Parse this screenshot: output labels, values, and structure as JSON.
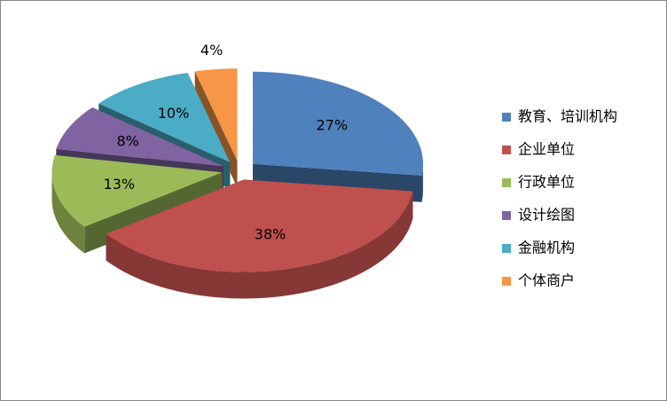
{
  "chart_data": {
    "type": "pie3d",
    "categories": [
      "教育、培训机构",
      "企业单位",
      "行政单位",
      "设计绘图",
      "金融机构",
      "个体商户"
    ],
    "values": [
      27,
      38,
      13,
      8,
      10,
      4
    ],
    "value_labels": [
      "27%",
      "38%",
      "13%",
      "8%",
      "10%",
      "4%"
    ],
    "colors": [
      "#4f81bd",
      "#c0504d",
      "#9bbb59",
      "#8064a2",
      "#4bacc6",
      "#f79646"
    ],
    "legend": "right"
  }
}
